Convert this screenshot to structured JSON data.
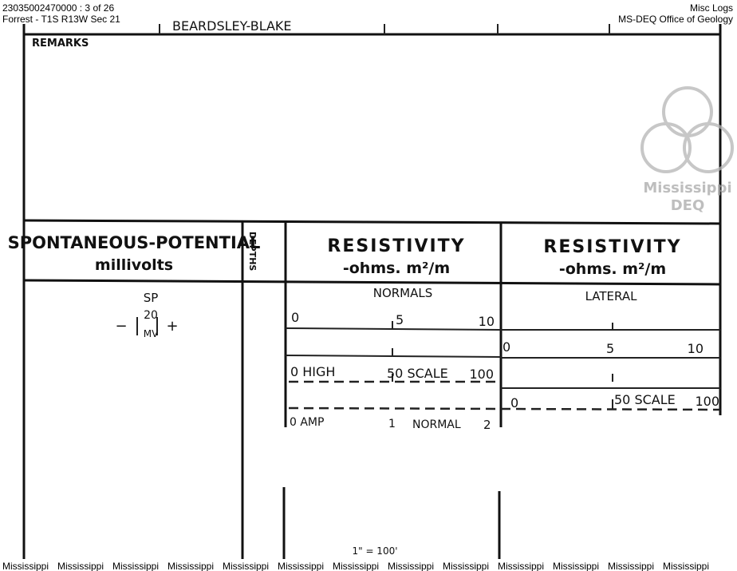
{
  "header": {
    "file_id": "23035002470000 : 3 of 26",
    "location": "Forrest - T1S R13W Sec 21",
    "log_type": "Misc Logs",
    "agency": "MS-DEQ Office of Geology"
  },
  "document": {
    "witness_fragment": "BEARDSLEY-BLAKE",
    "remarks_label": "REMARKS",
    "sp_header": {
      "title": "SPONTANEOUS-POTENTIAL",
      "unit": "millivolts"
    },
    "depths_label": "DEPTHS",
    "resistivity_normal": {
      "title": "RESISTIVITY",
      "unit": "-ohms. m²/m",
      "track_label": "NORMALS",
      "scales": [
        [
          "0",
          "5",
          "10"
        ],
        [
          "0 HIGH",
          "50 SCALE",
          "100"
        ],
        [
          "0 AMP",
          "1",
          "NORMAL",
          "2"
        ]
      ]
    },
    "resistivity_lateral": {
      "title": "RESISTIVITY",
      "unit": "-ohms. m²/m",
      "track_label": "LATERAL",
      "scales": [
        [
          "0",
          "5",
          "10"
        ],
        [
          "0",
          "50 SCALE",
          "100"
        ]
      ]
    },
    "sp_scale": {
      "label": "SP",
      "value": "20",
      "unit": "MV",
      "minus": "−",
      "plus": "+"
    },
    "depth_scale": "1\" = 100'"
  },
  "watermark": {
    "line1": "Mississippi",
    "line2": "DEQ"
  },
  "footer": [
    "Mississippi",
    "Mississippi",
    "Mississippi",
    "Mississippi",
    "Mississippi",
    "Mississippi",
    "Mississippi",
    "Mississippi",
    "Mississippi",
    "Mississippi",
    "Mississippi",
    "Mississippi",
    "Mississippi"
  ]
}
